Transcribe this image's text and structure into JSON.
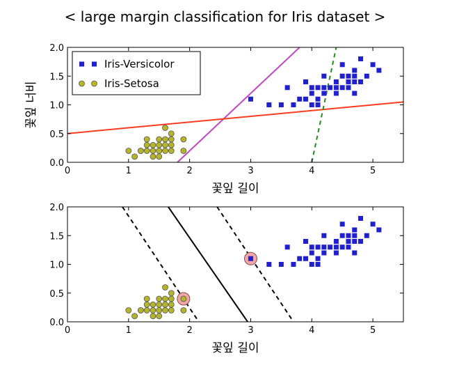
{
  "title": "< large margin classification for Iris dataset >",
  "chart_data": [
    {
      "type": "scatter",
      "xlabel": "꽃잎 길이",
      "ylabel": "꽃잎 너비",
      "xlim": [
        0,
        5.5
      ],
      "ylim": [
        0,
        2.0
      ],
      "xticks": [
        "0",
        "1",
        "2",
        "3",
        "4",
        "5"
      ],
      "yticks": [
        "0.0",
        "0.5",
        "1.0",
        "1.5",
        "2.0"
      ],
      "legend": {
        "placement": "top-left",
        "entries": [
          "Iris-Versicolor",
          "Iris-Setosa"
        ]
      },
      "series": [
        {
          "name": "Iris-Versicolor",
          "marker": "square",
          "color": "#1f1fd6",
          "points": [
            [
              3.0,
              1.1
            ],
            [
              3.3,
              1.0
            ],
            [
              3.5,
              1.0
            ],
            [
              3.7,
              1.0
            ],
            [
              3.9,
              1.1
            ],
            [
              3.9,
              1.4
            ],
            [
              4.0,
              1.0
            ],
            [
              4.0,
              1.2
            ],
            [
              4.0,
              1.3
            ],
            [
              4.1,
              1.0
            ],
            [
              4.1,
              1.3
            ],
            [
              4.2,
              1.2
            ],
            [
              4.2,
              1.3
            ],
            [
              4.2,
              1.5
            ],
            [
              4.3,
              1.3
            ],
            [
              4.4,
              1.2
            ],
            [
              4.4,
              1.3
            ],
            [
              4.4,
              1.4
            ],
            [
              4.5,
              1.3
            ],
            [
              4.5,
              1.5
            ],
            [
              4.5,
              1.7
            ],
            [
              4.6,
              1.3
            ],
            [
              4.6,
              1.4
            ],
            [
              4.6,
              1.5
            ],
            [
              4.7,
              1.2
            ],
            [
              4.7,
              1.4
            ],
            [
              4.7,
              1.5
            ],
            [
              4.7,
              1.6
            ],
            [
              4.8,
              1.4
            ],
            [
              4.8,
              1.8
            ],
            [
              4.9,
              1.5
            ],
            [
              5.0,
              1.7
            ],
            [
              5.1,
              1.6
            ],
            [
              3.6,
              1.3
            ],
            [
              3.8,
              1.1
            ],
            [
              4.1,
              1.1
            ]
          ]
        },
        {
          "name": "Iris-Setosa",
          "marker": "circle",
          "color": "#b5b52a",
          "points": [
            [
              1.0,
              0.2
            ],
            [
              1.1,
              0.1
            ],
            [
              1.2,
              0.2
            ],
            [
              1.3,
              0.2
            ],
            [
              1.3,
              0.3
            ],
            [
              1.3,
              0.4
            ],
            [
              1.4,
              0.1
            ],
            [
              1.4,
              0.2
            ],
            [
              1.4,
              0.3
            ],
            [
              1.5,
              0.1
            ],
            [
              1.5,
              0.2
            ],
            [
              1.5,
              0.3
            ],
            [
              1.5,
              0.4
            ],
            [
              1.6,
              0.2
            ],
            [
              1.6,
              0.4
            ],
            [
              1.6,
              0.6
            ],
            [
              1.7,
              0.2
            ],
            [
              1.7,
              0.3
            ],
            [
              1.7,
              0.4
            ],
            [
              1.7,
              0.5
            ],
            [
              1.9,
              0.2
            ],
            [
              1.9,
              0.4
            ],
            [
              1.2,
              0.2
            ],
            [
              1.6,
              0.3
            ]
          ]
        }
      ],
      "lines": [
        {
          "color": "#c644c6",
          "style": "solid",
          "from": [
            1.8,
            0.0
          ],
          "to": [
            3.8,
            2.0
          ]
        },
        {
          "color": "#ff3b1f",
          "style": "solid",
          "from": [
            0.0,
            0.5
          ],
          "to": [
            5.5,
            1.05
          ]
        },
        {
          "color": "#1f8f1f",
          "style": "dashed",
          "from": [
            4.0,
            0.0
          ],
          "to": [
            4.4,
            2.0
          ]
        }
      ]
    },
    {
      "type": "scatter",
      "xlabel": "꽃잎 길이",
      "ylabel": "",
      "xlim": [
        0,
        5.5
      ],
      "ylim": [
        0,
        2.0
      ],
      "xticks": [
        "0",
        "1",
        "2",
        "3",
        "4",
        "5"
      ],
      "yticks": [
        "0.0",
        "0.5",
        "1.0",
        "1.5",
        "2.0"
      ],
      "series": [
        {
          "name": "Iris-Versicolor",
          "marker": "square",
          "color": "#1f1fd6",
          "points": [
            [
              3.0,
              1.1
            ],
            [
              3.3,
              1.0
            ],
            [
              3.5,
              1.0
            ],
            [
              3.7,
              1.0
            ],
            [
              3.9,
              1.1
            ],
            [
              3.9,
              1.4
            ],
            [
              4.0,
              1.0
            ],
            [
              4.0,
              1.2
            ],
            [
              4.0,
              1.3
            ],
            [
              4.1,
              1.0
            ],
            [
              4.1,
              1.3
            ],
            [
              4.2,
              1.2
            ],
            [
              4.2,
              1.3
            ],
            [
              4.2,
              1.5
            ],
            [
              4.3,
              1.3
            ],
            [
              4.4,
              1.2
            ],
            [
              4.4,
              1.3
            ],
            [
              4.4,
              1.4
            ],
            [
              4.5,
              1.3
            ],
            [
              4.5,
              1.5
            ],
            [
              4.5,
              1.7
            ],
            [
              4.6,
              1.3
            ],
            [
              4.6,
              1.4
            ],
            [
              4.6,
              1.5
            ],
            [
              4.7,
              1.2
            ],
            [
              4.7,
              1.4
            ],
            [
              4.7,
              1.5
            ],
            [
              4.7,
              1.6
            ],
            [
              4.8,
              1.4
            ],
            [
              4.8,
              1.8
            ],
            [
              4.9,
              1.5
            ],
            [
              5.0,
              1.7
            ],
            [
              5.1,
              1.6
            ],
            [
              3.6,
              1.3
            ],
            [
              3.8,
              1.1
            ],
            [
              4.1,
              1.1
            ]
          ]
        },
        {
          "name": "Iris-Setosa",
          "marker": "circle",
          "color": "#b5b52a",
          "points": [
            [
              1.0,
              0.2
            ],
            [
              1.1,
              0.1
            ],
            [
              1.2,
              0.2
            ],
            [
              1.3,
              0.2
            ],
            [
              1.3,
              0.3
            ],
            [
              1.3,
              0.4
            ],
            [
              1.4,
              0.1
            ],
            [
              1.4,
              0.2
            ],
            [
              1.4,
              0.3
            ],
            [
              1.5,
              0.1
            ],
            [
              1.5,
              0.2
            ],
            [
              1.5,
              0.3
            ],
            [
              1.5,
              0.4
            ],
            [
              1.6,
              0.2
            ],
            [
              1.6,
              0.4
            ],
            [
              1.6,
              0.6
            ],
            [
              1.7,
              0.2
            ],
            [
              1.7,
              0.3
            ],
            [
              1.7,
              0.4
            ],
            [
              1.7,
              0.5
            ],
            [
              1.9,
              0.2
            ],
            [
              1.9,
              0.4
            ],
            [
              1.2,
              0.2
            ],
            [
              1.6,
              0.3
            ]
          ]
        }
      ],
      "support_vectors": {
        "color": "#f2a6a6",
        "points": [
          [
            1.9,
            0.4
          ],
          [
            3.0,
            1.1
          ]
        ]
      },
      "lines": [
        {
          "color": "#000000",
          "style": "solid",
          "from": [
            1.65,
            2.0
          ],
          "to": [
            2.95,
            0.0
          ]
        },
        {
          "color": "#000000",
          "style": "dashed",
          "from": [
            0.9,
            2.0
          ],
          "to": [
            2.15,
            0.0
          ]
        },
        {
          "color": "#000000",
          "style": "dashed",
          "from": [
            2.45,
            2.0
          ],
          "to": [
            3.7,
            0.0
          ]
        }
      ]
    }
  ]
}
